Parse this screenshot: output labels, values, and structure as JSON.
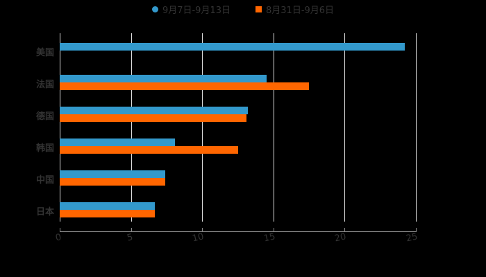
{
  "legend": {
    "items": [
      {
        "label": "9月7日-9月13日",
        "color": "#3399cc"
      },
      {
        "label": "8月31日-9月6日",
        "color": "#ff6600"
      }
    ]
  },
  "chart_data": {
    "type": "bar",
    "orientation": "horizontal",
    "title": "",
    "xlabel": "",
    "ylabel": "",
    "categories": [
      "美国",
      "法国",
      "德国",
      "韩国",
      "中国",
      "日本"
    ],
    "series": [
      {
        "name": "9月7日-9月13日",
        "color": "#3399cc",
        "values": [
          24.2,
          14.5,
          13.2,
          8.1,
          7.4,
          6.7
        ]
      },
      {
        "name": "8月31日-9月6日",
        "color": "#ff6600",
        "values": [
          null,
          17.5,
          13.1,
          12.5,
          7.4,
          6.7
        ]
      }
    ],
    "xlim": [
      0,
      25
    ],
    "xticks": [
      "0",
      "5",
      "10",
      "15",
      "20",
      "25"
    ],
    "grid": true,
    "legend_position": "top"
  }
}
